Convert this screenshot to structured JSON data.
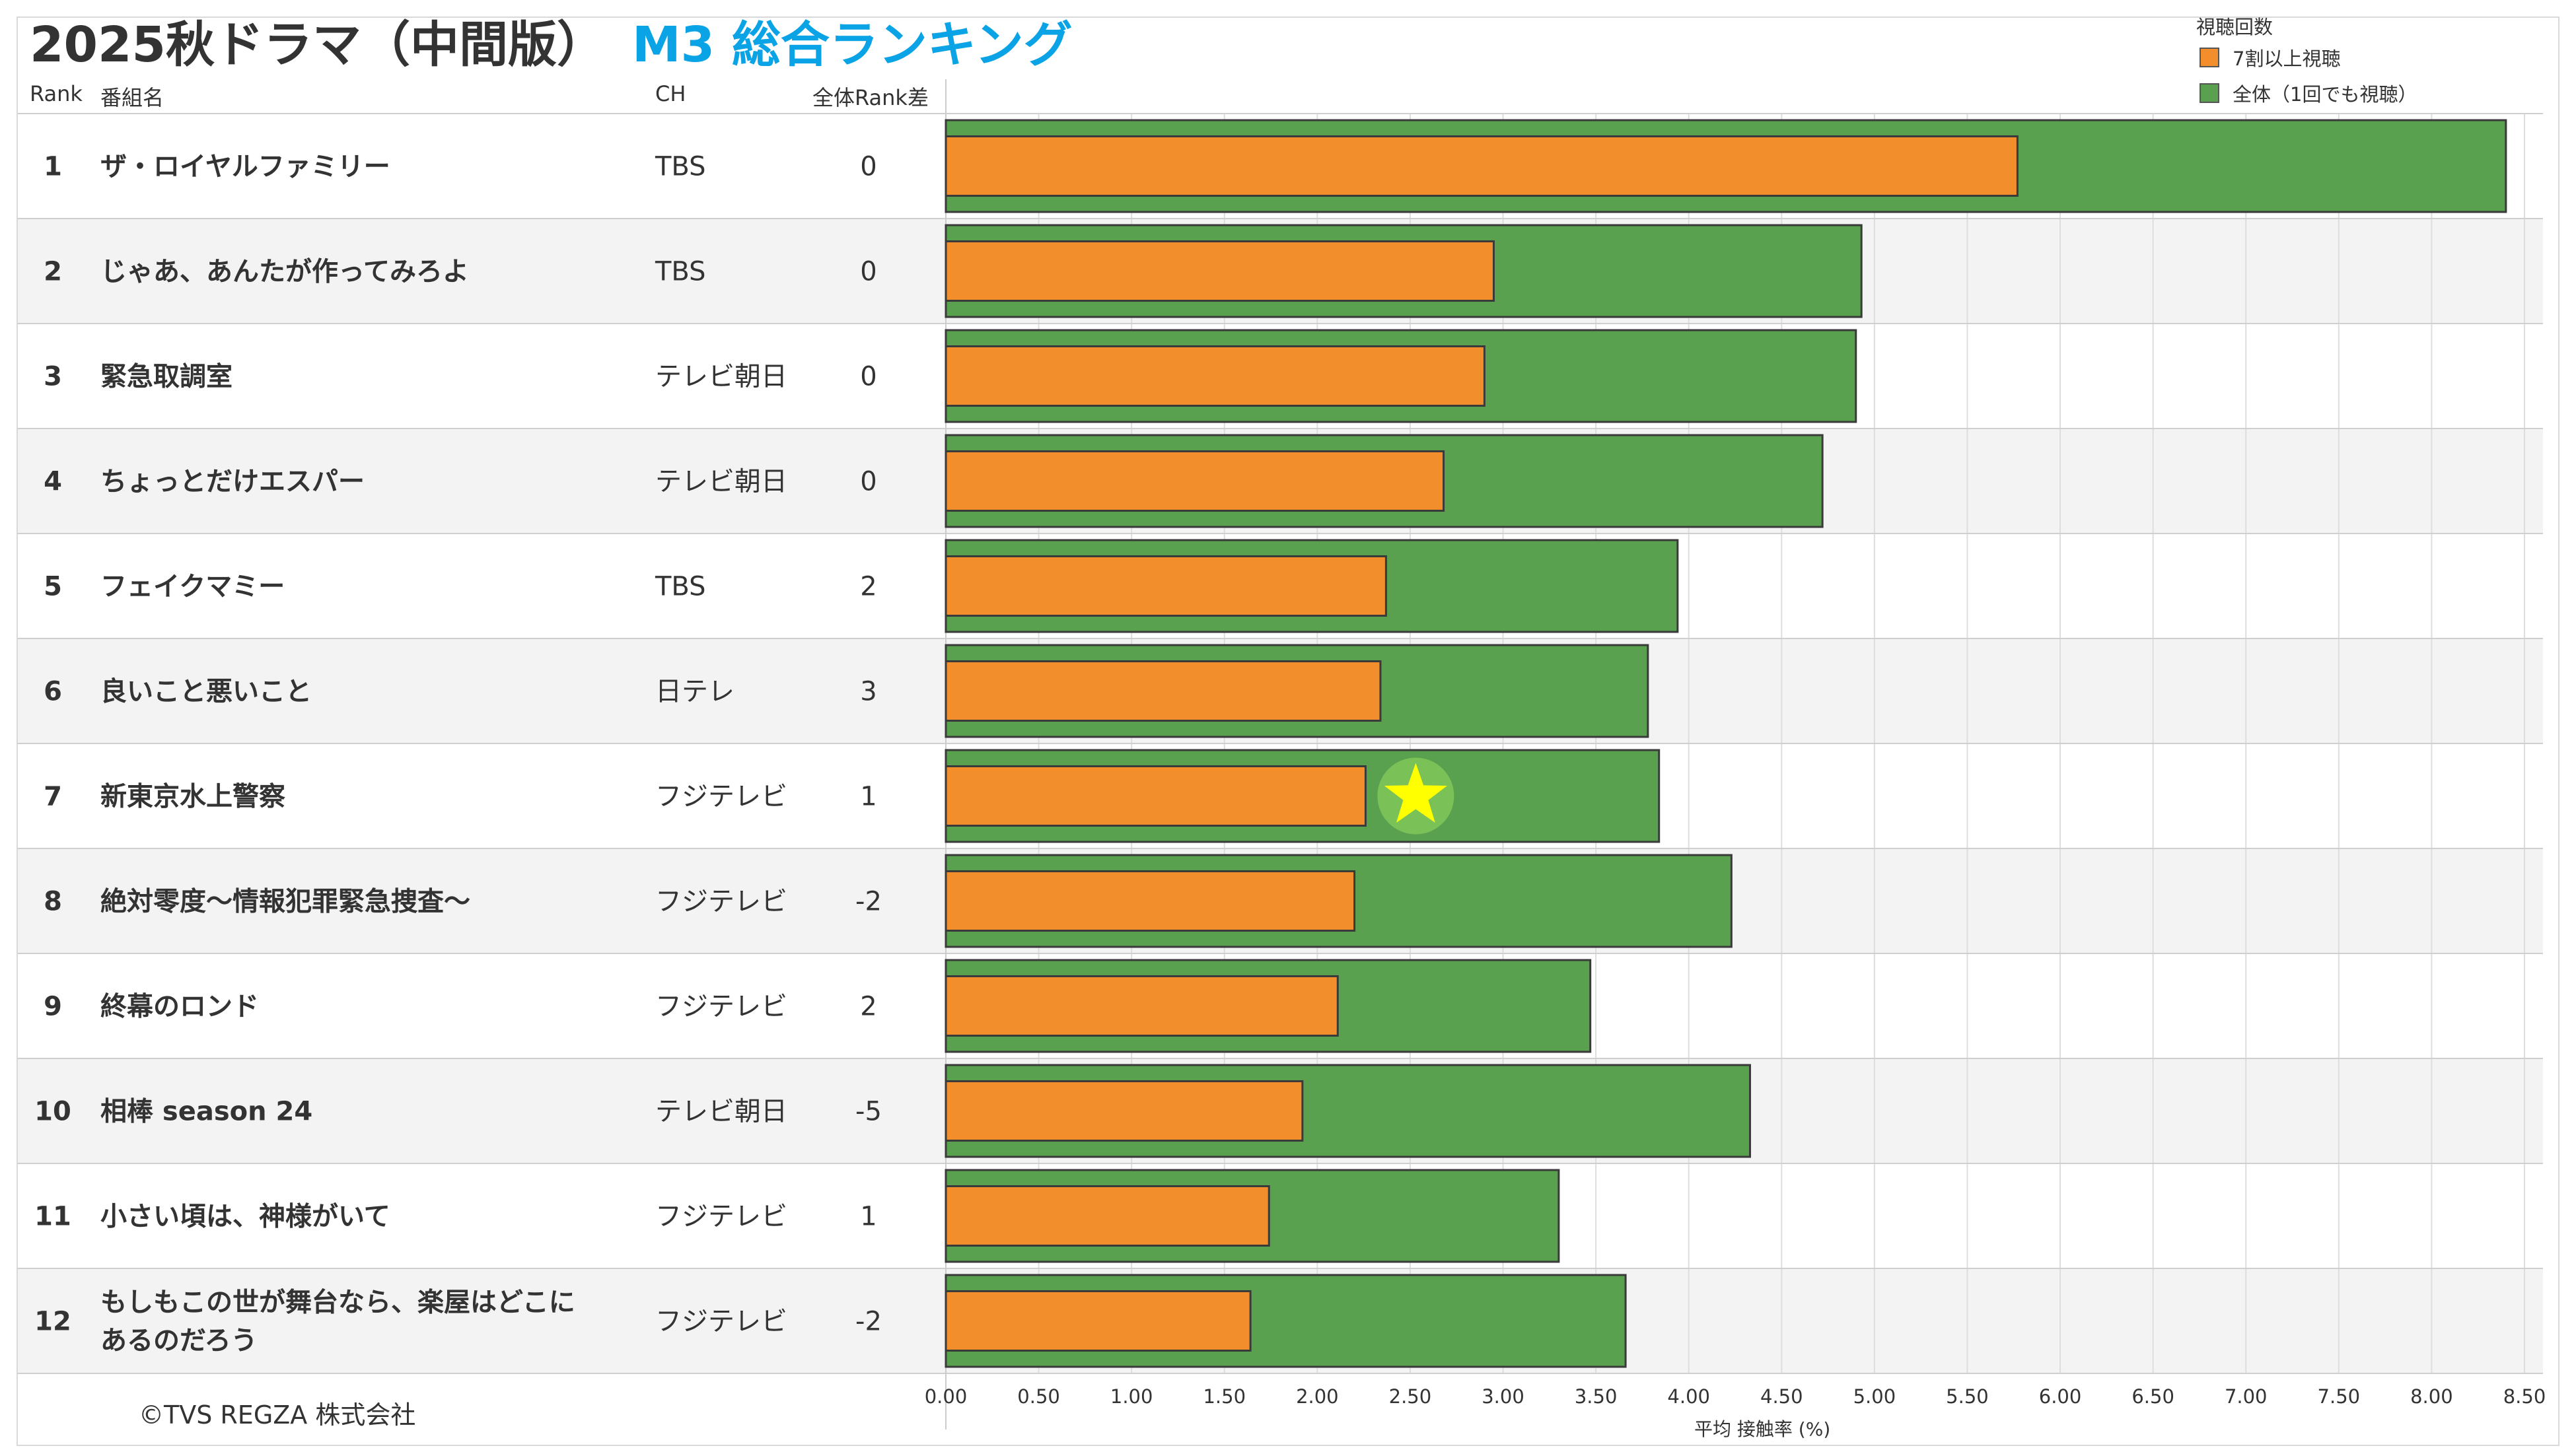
{
  "title": {
    "main": "2025秋ドラマ（中間版）",
    "sub": "M3 総合ランキング"
  },
  "columns": {
    "rank": "Rank",
    "name": "番組名",
    "ch": "CH",
    "diff": "全体Rank差"
  },
  "legend": {
    "title": "視聴回数",
    "series_a": "7割以上視聴",
    "series_b": "全体（1回でも視聴）"
  },
  "colors": {
    "series_a": "#f28e2b",
    "series_b": "#59a14f",
    "title_accent": "#0aa3e6",
    "star": "#ffff00"
  },
  "copyright": "©TVS REGZA 株式会社",
  "chart_data": {
    "type": "bar",
    "orientation": "horizontal",
    "xlabel": "平均 接触率 (%)",
    "xlim": [
      0,
      8.5
    ],
    "xticks": [
      "0.00",
      "0.50",
      "1.00",
      "1.50",
      "2.00",
      "2.50",
      "3.00",
      "3.50",
      "4.00",
      "4.50",
      "5.00",
      "5.50",
      "6.00",
      "6.50",
      "7.00",
      "7.50",
      "8.00",
      "8.50"
    ],
    "grid": true,
    "legend_position": "top-right",
    "categories": [
      "ザ・ロイヤルファミリー",
      "じゃあ、あんたが作ってみろよ",
      "緊急取調室",
      "ちょっとだけエスパー",
      "フェイクマミー",
      "良いこと悪いこと",
      "新東京水上警察",
      "絶対零度～情報犯罪緊急捜査～",
      "終幕のロンド",
      "相棒 season 24",
      "小さい頃は、神様がいて",
      "もしもこの世が舞台なら、楽屋はどこにあるのだろう"
    ],
    "series": [
      {
        "name": "全体（1回でも視聴）",
        "values": [
          8.4,
          4.93,
          4.9,
          4.72,
          3.94,
          3.78,
          3.84,
          4.23,
          3.47,
          4.33,
          3.3,
          3.66
        ]
      },
      {
        "name": "7割以上視聴",
        "values": [
          5.77,
          2.95,
          2.9,
          2.68,
          2.37,
          2.34,
          2.26,
          2.2,
          2.11,
          1.92,
          1.74,
          1.64
        ]
      }
    ],
    "rows": [
      {
        "rank": "1",
        "ch": "TBS",
        "diff": "0"
      },
      {
        "rank": "2",
        "ch": "TBS",
        "diff": "0"
      },
      {
        "rank": "3",
        "ch": "テレビ朝日",
        "diff": "0"
      },
      {
        "rank": "4",
        "ch": "テレビ朝日",
        "diff": "0"
      },
      {
        "rank": "5",
        "ch": "TBS",
        "diff": "2"
      },
      {
        "rank": "6",
        "ch": "日テレ",
        "diff": "3"
      },
      {
        "rank": "7",
        "ch": "フジテレビ",
        "diff": "1"
      },
      {
        "rank": "8",
        "ch": "フジテレビ",
        "diff": "-2"
      },
      {
        "rank": "9",
        "ch": "フジテレビ",
        "diff": "2"
      },
      {
        "rank": "10",
        "ch": "テレビ朝日",
        "diff": "-5"
      },
      {
        "rank": "11",
        "ch": "フジテレビ",
        "diff": "1"
      },
      {
        "rank": "12",
        "ch": "フジテレビ",
        "diff": "-2"
      }
    ],
    "highlight": {
      "category": "新東京水上警察",
      "marker": "star",
      "at_value": 2.53
    }
  }
}
